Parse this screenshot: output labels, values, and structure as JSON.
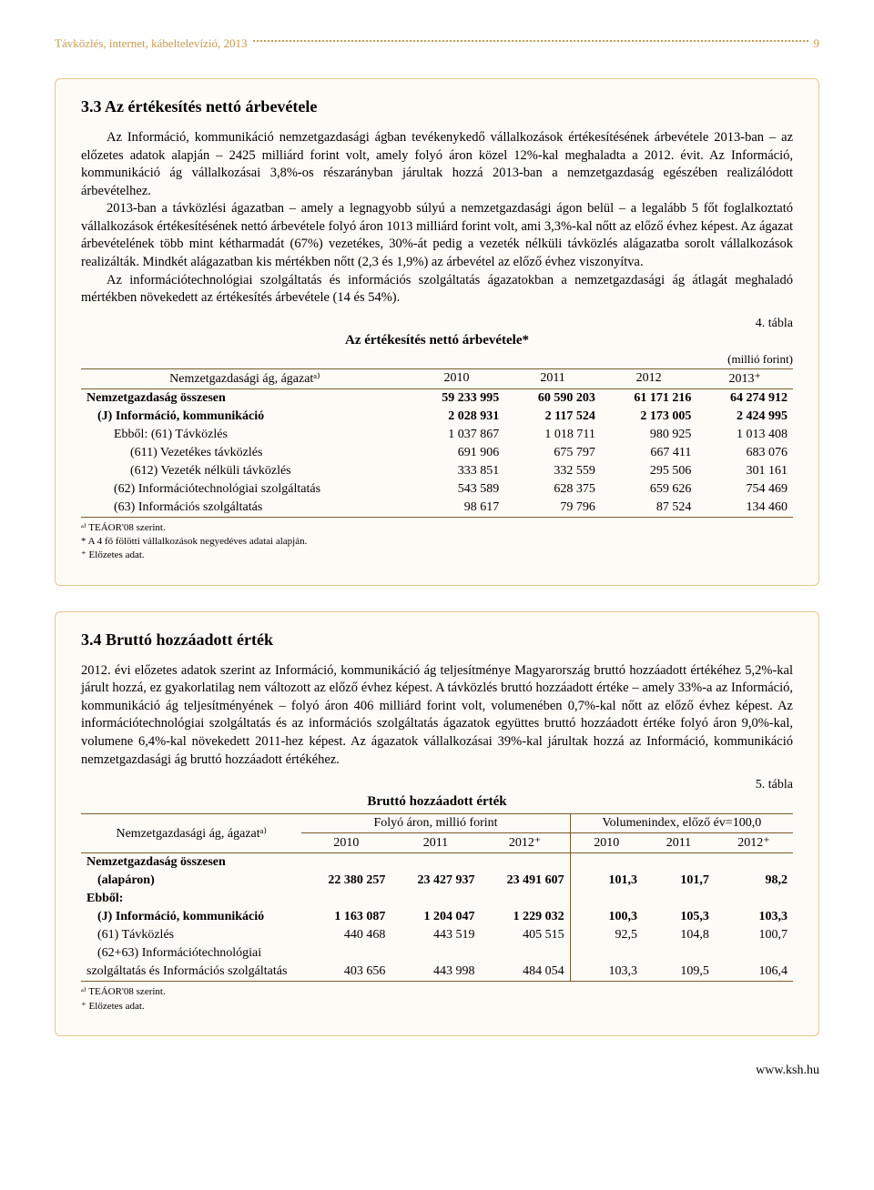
{
  "header": {
    "title": "Távközlés, internet, kábeltelevízió, 2013",
    "page_number": "9"
  },
  "section1": {
    "title": "3.3 Az értékesítés nettó árbevétele",
    "para1": "Az Információ, kommunikáció nemzetgazdasági ágban tevékenykedő vállalkozások értékesítésének árbevétele 2013-ban – az előzetes adatok alapján – 2425 milliárd forint volt, amely folyó áron közel 12%-kal meghaladta a 2012. évit. Az Információ, kommunikáció ág vállalkozásai 3,8%-os részarányban járultak hozzá 2013-ban a nemzetgazdaság egészében realizálódott árbevételhez.",
    "para2": "2013-ban a távközlési ágazatban – amely a legnagyobb súlyú a nemzetgazdasági ágon belül – a legalább 5 főt foglalkoztató vállalkozások értékesítésének nettó árbevétele folyó áron 1013 milliárd forint volt, ami 3,3%-kal nőtt az előző évhez képest. Az ágazat árbevételének több mint kétharmadát (67%) vezetékes, 30%-át pedig a vezeték nélküli távközlés alágazatba sorolt vállalkozások realizálták. Mindkét alágazatban kis mértékben nőtt (2,3 és 1,9%) az árbevétel az előző évhez viszonyítva.",
    "para3": "Az információtechnológiai szolgáltatás és információs szolgáltatás ágazatokban a nemzetgazdasági ág átlagát meghaladó mértékben növekedett az értékesítés árbevétele (14 és 54%).",
    "table_caption": "4. tábla",
    "table_title": "Az értékesítés nettó árbevétele*",
    "table_unit": "(millió forint)",
    "table_header_col0": "Nemzetgazdasági ág, ágazatᵃ⁾",
    "table_header_col1": "2010",
    "table_header_col2": "2011",
    "table_header_col3": "2012",
    "table_header_col4": "2013⁺",
    "rows": [
      {
        "label": "Nemzetgazdaság összesen",
        "v": [
          "59 233 995",
          "60 590 203",
          "61 171 216",
          "64 274 912"
        ],
        "bold": true,
        "indent": 0
      },
      {
        "label": "(J) Információ, kommunikáció",
        "v": [
          "2 028 931",
          "2 117 524",
          "2 173 005",
          "2 424 995"
        ],
        "bold": true,
        "indent": 1
      },
      {
        "label": "Ebből: (61) Távközlés",
        "v": [
          "1 037 867",
          "1 018 711",
          "980 925",
          "1 013 408"
        ],
        "bold": false,
        "indent": 2
      },
      {
        "label": "(611) Vezetékes távközlés",
        "v": [
          "691 906",
          "675 797",
          "667 411",
          "683 076"
        ],
        "bold": false,
        "indent": 3
      },
      {
        "label": "(612) Vezeték nélküli távközlés",
        "v": [
          "333 851",
          "332 559",
          "295 506",
          "301 161"
        ],
        "bold": false,
        "indent": 3
      },
      {
        "label": "(62) Információtechnológiai szolgáltatás",
        "v": [
          "543 589",
          "628 375",
          "659 626",
          "754 469"
        ],
        "bold": false,
        "indent": 2
      },
      {
        "label": "(63) Információs szolgáltatás",
        "v": [
          "98 617",
          "79 796",
          "87 524",
          "134 460"
        ],
        "bold": false,
        "indent": 2
      }
    ],
    "footnote_a": "ᵃ⁾ TEÁOR'08 szerint.",
    "footnote_star": "* A 4 fő fölötti vállalkozások negyedéves adatai alapján.",
    "footnote_plus": "⁺ Előzetes adat."
  },
  "section2": {
    "title": "3.4 Bruttó hozzáadott érték",
    "para1": "2012. évi előzetes adatok szerint az Információ, kommunikáció ág teljesítménye Magyarország bruttó hozzáadott értékéhez 5,2%-kal járult hozzá, ez gyakorlatilag nem változott az előző évhez képest. A távközlés bruttó hozzáadott értéke – amely 33%-a az Információ, kommunikáció ág teljesítményének – folyó áron 406 milliárd forint volt, volumenében 0,7%-kal nőtt az előző évhez képest. Az információtechnológiai szolgáltatás és az információs szolgáltatás ágazatok együttes bruttó hozzáadott értéke folyó áron 9,0%-kal, volumene 6,4%-kal növekedett 2011-hez képest. Az ágazatok vállalkozásai 39%-kal járultak hozzá az Információ, kommunikáció nemzetgazdasági ág bruttó hozzáadott értékéhez.",
    "table_caption": "5. tábla",
    "table_title": "Bruttó hozzáadott érték",
    "group1_header": "Folyó áron, millió forint",
    "group2_header": "Volumenindex, előző év=100,0",
    "table_header_col0": "Nemzetgazdasági ág, ágazatᵃ⁾",
    "yrs": [
      "2010",
      "2011",
      "2012⁺",
      "2010",
      "2011",
      "2012⁺"
    ],
    "rows": [
      {
        "label": "Nemzetgazdaság összesen",
        "v": [
          "",
          "",
          "",
          "",
          "",
          ""
        ],
        "bold": true,
        "indent": 0
      },
      {
        "label": "(alapáron)",
        "v": [
          "22 380 257",
          "23 427 937",
          "23 491 607",
          "101,3",
          "101,7",
          "98,2"
        ],
        "bold": true,
        "indent": 1
      },
      {
        "label": "Ebből:",
        "v": [
          "",
          "",
          "",
          "",
          "",
          ""
        ],
        "bold": true,
        "indent": 0
      },
      {
        "label": "(J) Információ, kommunikáció",
        "v": [
          "1 163 087",
          "1 204 047",
          "1 229 032",
          "100,3",
          "105,3",
          "103,3"
        ],
        "bold": true,
        "indent": 1
      },
      {
        "label": "(61) Távközlés",
        "v": [
          "440 468",
          "443 519",
          "405 515",
          "92,5",
          "104,8",
          "100,7"
        ],
        "bold": false,
        "indent": 1
      },
      {
        "label": "(62+63) Információtechnológiai",
        "v": [
          "",
          "",
          "",
          "",
          "",
          ""
        ],
        "bold": false,
        "indent": 1
      },
      {
        "label": "szolgáltatás és Információs szolgáltatás",
        "v": [
          "403 656",
          "443 998",
          "484 054",
          "103,3",
          "109,5",
          "106,4"
        ],
        "bold": false,
        "indent": 0
      }
    ],
    "footnote_a": "ᵃ⁾ TEÁOR'08 szerint.",
    "footnote_plus": "⁺ Előzetes adat."
  },
  "footer_link": "www.ksh.hu"
}
